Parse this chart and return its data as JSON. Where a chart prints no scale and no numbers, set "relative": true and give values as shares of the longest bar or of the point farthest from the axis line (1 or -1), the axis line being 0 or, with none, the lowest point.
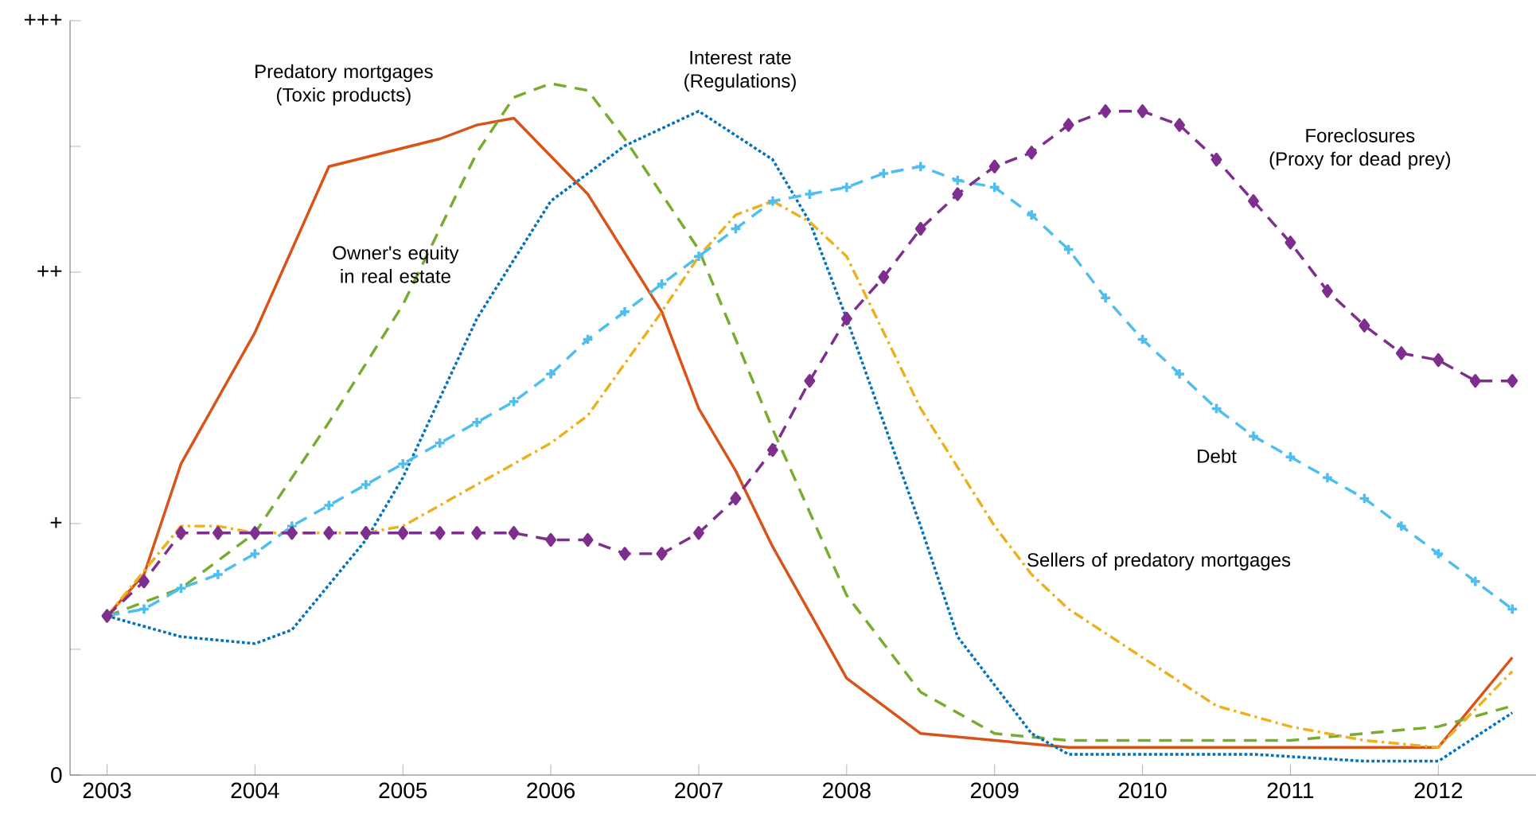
{
  "chart_data": {
    "type": "line",
    "relative": true,
    "xlim": [
      2002.75,
      2012.66
    ],
    "xticks": [
      2003,
      2004,
      2005,
      2006,
      2007,
      2008,
      2009,
      2010,
      2011,
      2012
    ],
    "annotations": [
      "0",
      "+",
      "++",
      "+++"
    ],
    "grid": false,
    "legend": false,
    "series": [
      {
        "name": "Predatory mortgages\n(Toxic products)",
        "color": "#d95319",
        "line_style": "solid",
        "marker": "none",
        "x": [
          2003,
          2003.25,
          2003.5,
          2004,
          2004.5,
          2005.25,
          2005.5,
          2005.75,
          2006.25,
          2006.75,
          2007,
          2007.25,
          2007.5,
          2008,
          2008.5,
          2009.5,
          2012,
          2012.5
        ],
        "values": [
          0.23,
          0.29,
          0.45,
          0.64,
          0.88,
          0.92,
          0.94,
          0.95,
          0.84,
          0.67,
          0.53,
          0.44,
          0.33,
          0.14,
          0.06,
          0.04,
          0.04,
          0.17
        ]
      },
      {
        "name": "Owner's equity\nin real estate",
        "color": "#77ac30",
        "line_style": "dashed",
        "marker": "none",
        "x": [
          2003,
          2003.5,
          2004,
          2004.5,
          2005,
          2005.5,
          2005.75,
          2006,
          2006.25,
          2006.5,
          2007,
          2007.5,
          2008,
          2008.5,
          2009,
          2009.5,
          2010,
          2011,
          2012,
          2012.5
        ],
        "values": [
          0.23,
          0.27,
          0.35,
          0.51,
          0.68,
          0.9,
          0.98,
          1,
          0.99,
          0.92,
          0.76,
          0.5,
          0.26,
          0.12,
          0.06,
          0.05,
          0.05,
          0.05,
          0.07,
          0.1
        ]
      },
      {
        "name": "Interest rate\n(Regulations)",
        "color": "#0072bd",
        "line_style": "dotted",
        "marker": "none",
        "x": [
          2003,
          2003.5,
          2004,
          2004.25,
          2004.75,
          2005,
          2005.5,
          2006,
          2006.5,
          2007,
          2007.5,
          2007.75,
          2008,
          2008.5,
          2008.75,
          2009.25,
          2009.5,
          2010,
          2010.75,
          2011.5,
          2012,
          2012.5
        ],
        "values": [
          0.23,
          0.2,
          0.19,
          0.21,
          0.34,
          0.43,
          0.66,
          0.83,
          0.91,
          0.96,
          0.89,
          0.8,
          0.66,
          0.36,
          0.2,
          0.06,
          0.03,
          0.03,
          0.03,
          0.02,
          0.02,
          0.09
        ]
      },
      {
        "name": "Sellers of predatory mortgages",
        "color": "#edb120",
        "line_style": "dashdot",
        "marker": "none",
        "x": [
          2003,
          2003.5,
          2003.75,
          2004,
          2004.75,
          2005,
          2005.5,
          2006,
          2006.25,
          2006.75,
          2007,
          2007.25,
          2007.5,
          2007.75,
          2008,
          2008.5,
          2009,
          2009.25,
          2009.5,
          2010,
          2010.5,
          2011,
          2011.5,
          2012,
          2012.5
        ],
        "values": [
          0.23,
          0.36,
          0.36,
          0.35,
          0.35,
          0.36,
          0.42,
          0.48,
          0.52,
          0.67,
          0.75,
          0.81,
          0.83,
          0.8,
          0.75,
          0.53,
          0.36,
          0.29,
          0.24,
          0.17,
          0.1,
          0.07,
          0.05,
          0.04,
          0.15
        ]
      },
      {
        "name": "Debt",
        "color": "#4dbeee",
        "line_style": "dashed",
        "marker": "cross",
        "x": [
          2003,
          2003.25,
          2003.5,
          2003.75,
          2004,
          2004.25,
          2004.5,
          2004.75,
          2005,
          2005.25,
          2005.5,
          2005.75,
          2006,
          2006.25,
          2006.5,
          2006.75,
          2007,
          2007.25,
          2007.5,
          2007.75,
          2008,
          2008.25,
          2008.5,
          2008.75,
          2009,
          2009.25,
          2009.5,
          2009.75,
          2010,
          2010.25,
          2010.5,
          2010.75,
          2011,
          2011.25,
          2011.5,
          2011.75,
          2012,
          2012.25,
          2012.5
        ],
        "values": [
          0.23,
          0.24,
          0.27,
          0.29,
          0.32,
          0.36,
          0.39,
          0.42,
          0.45,
          0.48,
          0.51,
          0.54,
          0.58,
          0.63,
          0.67,
          0.71,
          0.75,
          0.79,
          0.83,
          0.84,
          0.85,
          0.87,
          0.88,
          0.86,
          0.85,
          0.81,
          0.76,
          0.69,
          0.63,
          0.58,
          0.53,
          0.49,
          0.46,
          0.43,
          0.4,
          0.36,
          0.32,
          0.28,
          0.24
        ]
      },
      {
        "name": "Foreclosures\n(Proxy for dead prey)",
        "color": "#7e2f8e",
        "line_style": "dashed",
        "marker": "diamond",
        "x": [
          2003,
          2003.25,
          2003.5,
          2003.75,
          2004,
          2004.25,
          2004.5,
          2004.75,
          2005,
          2005.25,
          2005.5,
          2005.75,
          2006,
          2006.25,
          2006.5,
          2006.75,
          2007,
          2007.25,
          2007.5,
          2007.75,
          2008,
          2008.25,
          2008.5,
          2008.75,
          2009,
          2009.25,
          2009.5,
          2009.75,
          2010,
          2010.25,
          2010.5,
          2010.75,
          2011,
          2011.25,
          2011.5,
          2011.75,
          2012,
          2012.25,
          2012.5
        ],
        "values": [
          0.23,
          0.28,
          0.35,
          0.35,
          0.35,
          0.35,
          0.35,
          0.35,
          0.35,
          0.35,
          0.35,
          0.35,
          0.34,
          0.34,
          0.32,
          0.32,
          0.35,
          0.4,
          0.47,
          0.57,
          0.66,
          0.72,
          0.79,
          0.84,
          0.88,
          0.9,
          0.94,
          0.96,
          0.96,
          0.94,
          0.89,
          0.83,
          0.77,
          0.7,
          0.65,
          0.61,
          0.6,
          0.57,
          0.57
        ]
      }
    ]
  }
}
